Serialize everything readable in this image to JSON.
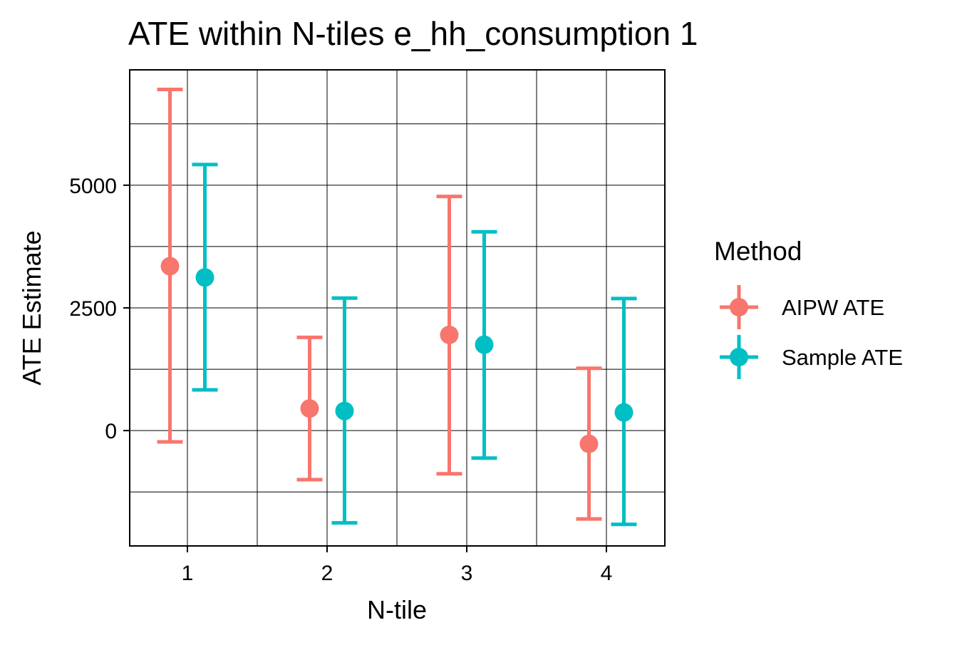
{
  "chart_data": {
    "type": "errorbar",
    "title": "ATE within N-tiles e_hh_consumption 1",
    "xlabel": "N-tile",
    "ylabel": "ATE Estimate",
    "categories": [
      "1",
      "2",
      "3",
      "4"
    ],
    "ylim": [
      -2350,
      7350
    ],
    "yticks": [
      0,
      2500,
      5000
    ],
    "yticklabels": [
      "0",
      "2500",
      "5000"
    ],
    "grid": true,
    "legend": {
      "title": "Method",
      "position": "right"
    },
    "series": [
      {
        "name": "AIPW ATE",
        "color": "#F8766D",
        "estimate": [
          3350,
          450,
          1950,
          -270
        ],
        "lower": [
          -230,
          -1000,
          -880,
          -1800
        ],
        "upper": [
          6950,
          1900,
          4770,
          1270
        ]
      },
      {
        "name": "Sample ATE",
        "color": "#00BFC4",
        "estimate": [
          3120,
          400,
          1750,
          370
        ],
        "lower": [
          830,
          -1880,
          -560,
          -1910
        ],
        "upper": [
          5420,
          2700,
          4050,
          2690
        ]
      }
    ]
  }
}
